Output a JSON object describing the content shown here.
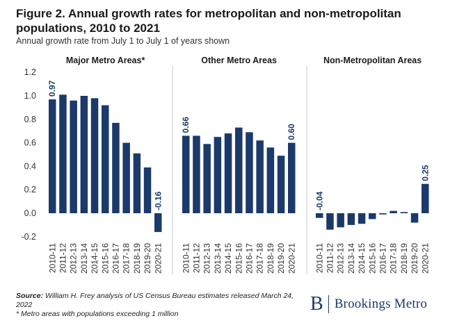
{
  "title": "Figure 2. Annual growth rates for metropolitan and non-metropolitan populations, 2010 to 2021",
  "subtitle": "Annual growth rate from July 1 to July 1 of years shown",
  "footer": {
    "source_label": "Source:",
    "source_text": "William H. Frey analysis of US Census Bureau estimates released March 24, 2022",
    "note": "* Metro areas with populations exceeding 1 million"
  },
  "logo": {
    "mark": "B",
    "text": "Brookings Metro"
  },
  "colors": {
    "bar": "#1b3a6b",
    "label": "#1b3a6b",
    "divider": "#c8c8c8"
  },
  "chart_data": {
    "type": "bar",
    "ylim": [
      -0.2,
      1.2
    ],
    "yticks": [
      "1.2",
      "1.0",
      "0.8",
      "0.6",
      "0.4",
      "0.2",
      "0.0",
      "-0.2"
    ],
    "ytick_values": [
      1.2,
      1.0,
      0.8,
      0.6,
      0.4,
      0.2,
      0.0,
      -0.2
    ],
    "categories": [
      "2010-11",
      "2011-12",
      "2012-13",
      "2013-14",
      "2014-15",
      "2015-16",
      "2016-17",
      "2017-18",
      "2018-19",
      "2019-20",
      "2020-21"
    ],
    "panels": [
      {
        "title": "Major Metro Areas*",
        "values": [
          0.97,
          1.01,
          0.96,
          1.0,
          0.98,
          0.92,
          0.77,
          0.6,
          0.51,
          0.39,
          -0.16
        ],
        "labels": {
          "0": "0.97",
          "10": "-0.16"
        }
      },
      {
        "title": "Other Metro Areas",
        "values": [
          0.66,
          0.66,
          0.59,
          0.65,
          0.68,
          0.73,
          0.69,
          0.62,
          0.56,
          0.49,
          0.6
        ],
        "labels": {
          "0": "0.66",
          "10": "0.60"
        }
      },
      {
        "title": "Non-Metropolitan Areas",
        "values": [
          -0.04,
          -0.14,
          -0.12,
          -0.1,
          -0.09,
          -0.05,
          -0.01,
          0.02,
          0.01,
          -0.08,
          0.25
        ],
        "labels": {
          "0": "-0.04",
          "10": "0.25"
        }
      }
    ]
  }
}
